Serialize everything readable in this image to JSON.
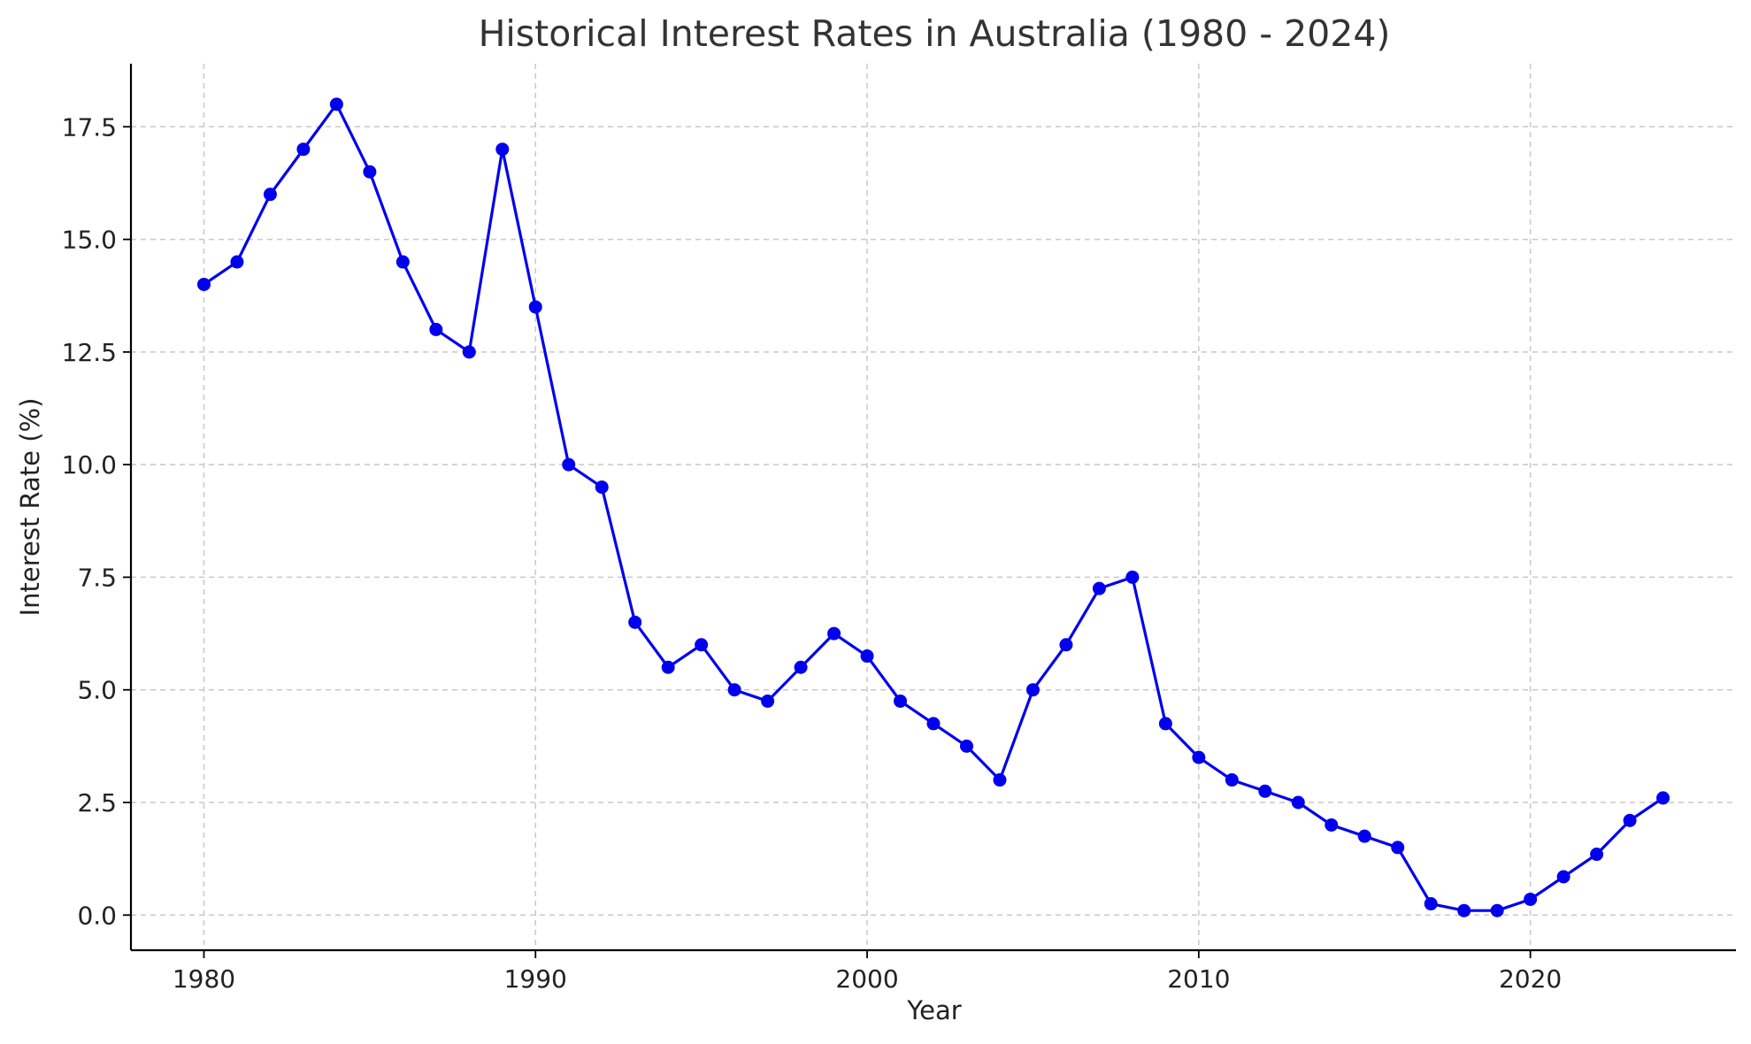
{
  "chart_data": {
    "type": "line",
    "title": "Historical Interest Rates in Australia (1980 - 2024)",
    "xlabel": "Year",
    "ylabel": "Interest Rate (%)",
    "xlim": [
      1977.8,
      2026.2
    ],
    "ylim": [
      -0.78,
      18.9
    ],
    "xticks": [
      1980,
      1990,
      2000,
      2010,
      2020
    ],
    "xtick_labels": [
      "1980",
      "1990",
      "2000",
      "2010",
      "2020"
    ],
    "yticks": [
      0,
      2.5,
      5,
      7.5,
      10,
      12.5,
      15,
      17.5
    ],
    "ytick_labels": [
      "0.0",
      "2.5",
      "5.0",
      "7.5",
      "10.0",
      "12.5",
      "15.0",
      "17.5"
    ],
    "grid": true,
    "legend": "none",
    "colors": {
      "series": "#0000ee"
    },
    "x": [
      1980,
      1981,
      1982,
      1983,
      1984,
      1985,
      1986,
      1987,
      1988,
      1989,
      1990,
      1991,
      1992,
      1993,
      1994,
      1995,
      1996,
      1997,
      1998,
      1999,
      2000,
      2001,
      2002,
      2003,
      2004,
      2005,
      2006,
      2007,
      2008,
      2009,
      2010,
      2011,
      2012,
      2013,
      2014,
      2015,
      2016,
      2017,
      2018,
      2019,
      2020,
      2021,
      2022,
      2023,
      2024
    ],
    "series": [
      {
        "values": [
          14.0,
          14.5,
          16.0,
          17.0,
          18.0,
          16.5,
          14.5,
          13.0,
          12.5,
          17.0,
          13.5,
          10.0,
          9.5,
          6.5,
          5.5,
          6.0,
          5.0,
          4.75,
          5.5,
          6.25,
          5.75,
          4.75,
          4.25,
          3.75,
          3.0,
          5.0,
          6.0,
          7.25,
          7.5,
          4.25,
          3.5,
          3.0,
          2.75,
          2.5,
          2.0,
          1.75,
          1.5,
          0.25,
          0.1,
          0.1,
          0.35,
          0.85,
          1.35,
          2.1,
          2.6
        ]
      }
    ]
  }
}
